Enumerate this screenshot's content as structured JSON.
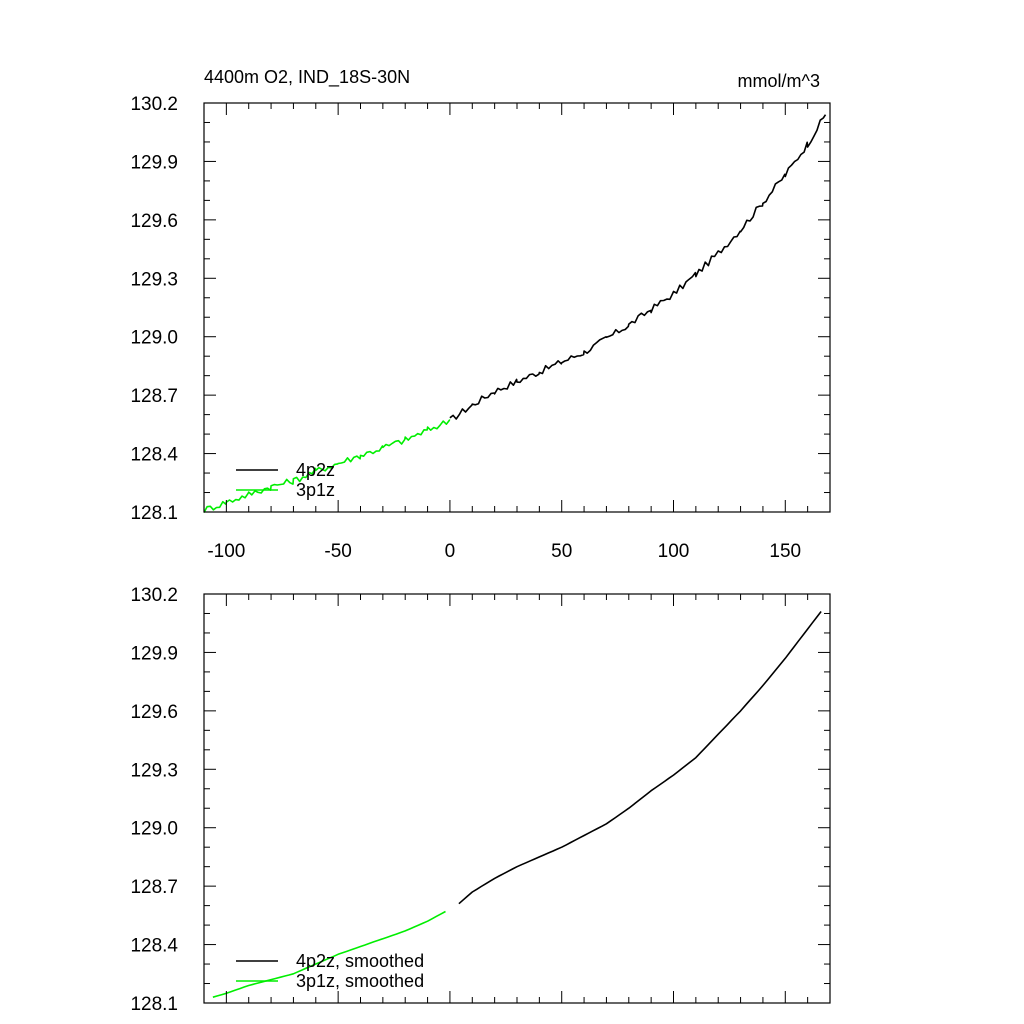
{
  "colors": {
    "4p2z": "#000000",
    "3p1z": "#00ee00"
  },
  "chart_data": [
    {
      "type": "line",
      "title": "4400m O2, IND_18S-30N",
      "units": "mmol/m^3",
      "xlabel": "",
      "ylabel": "",
      "xlim": [
        -110,
        170
      ],
      "ylim": [
        128.1,
        130.2
      ],
      "xticks": [
        -100,
        -50,
        0,
        50,
        100,
        150
      ],
      "yticks": [
        128.1,
        128.4,
        128.7,
        129.0,
        129.3,
        129.6,
        129.9,
        130.2
      ],
      "ytick_labels": [
        "128.1",
        "128.4",
        "128.7",
        "129.0",
        "129.3",
        "129.6",
        "129.9",
        "130.2"
      ],
      "show_xtick_labels": true,
      "legend_position": "bottom-left",
      "noisy": true,
      "series": [
        {
          "name": "4p2z",
          "color": "#000000",
          "x": [
            0,
            10,
            20,
            30,
            40,
            50,
            60,
            70,
            80,
            90,
            100,
            110,
            120,
            130,
            140,
            150,
            160,
            168
          ],
          "y": [
            128.57,
            128.65,
            128.72,
            128.77,
            128.82,
            128.87,
            128.92,
            128.99,
            129.06,
            129.14,
            129.22,
            129.32,
            129.43,
            129.55,
            129.69,
            129.83,
            129.99,
            130.14
          ]
        },
        {
          "name": "3p1z",
          "color": "#00ee00",
          "x": [
            -110,
            -100,
            -90,
            -80,
            -70,
            -60,
            -50,
            -40,
            -30,
            -20,
            -10,
            0
          ],
          "y": [
            128.11,
            128.15,
            128.19,
            128.23,
            128.26,
            128.31,
            128.35,
            128.39,
            128.43,
            128.47,
            128.52,
            128.57
          ]
        }
      ]
    },
    {
      "type": "line",
      "title": "",
      "xlabel": "",
      "ylabel": "",
      "xlim": [
        -110,
        170
      ],
      "ylim": [
        128.1,
        130.2
      ],
      "xticks": [
        -100,
        -50,
        0,
        50,
        100,
        150
      ],
      "yticks": [
        128.1,
        128.4,
        128.7,
        129.0,
        129.3,
        129.6,
        129.9,
        130.2
      ],
      "ytick_labels": [
        "128.1",
        "128.4",
        "128.7",
        "129.0",
        "129.3",
        "129.6",
        "129.9",
        "130.2"
      ],
      "show_xtick_labels": false,
      "legend_position": "bottom-left",
      "noisy": false,
      "series": [
        {
          "name": "4p2z, smoothed",
          "color": "#000000",
          "x": [
            4,
            10,
            20,
            30,
            40,
            50,
            60,
            70,
            80,
            90,
            100,
            110,
            120,
            130,
            140,
            150,
            160,
            166
          ],
          "y": [
            128.61,
            128.67,
            128.74,
            128.8,
            128.85,
            128.9,
            128.96,
            129.02,
            129.1,
            129.19,
            129.27,
            129.36,
            129.48,
            129.6,
            129.73,
            129.87,
            130.02,
            130.11
          ]
        },
        {
          "name": "3p1z, smoothed",
          "color": "#00ee00",
          "x": [
            -106,
            -100,
            -90,
            -80,
            -70,
            -60,
            -50,
            -40,
            -30,
            -20,
            -10,
            -2
          ],
          "y": [
            128.13,
            128.15,
            128.19,
            128.22,
            128.25,
            128.3,
            128.35,
            128.39,
            128.43,
            128.47,
            128.52,
            128.57
          ]
        }
      ]
    }
  ]
}
